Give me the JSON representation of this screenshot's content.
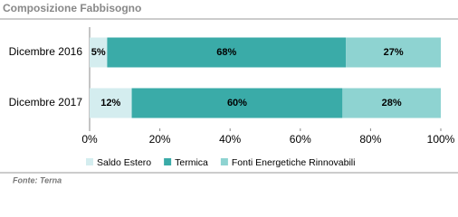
{
  "chart_data": {
    "type": "stacked-bar-horizontal",
    "title": "Composizione Fabbisogno",
    "source": "Fonte: Terna",
    "categories": [
      "Dicembre 2016",
      "Dicembre 2017"
    ],
    "series": [
      {
        "name": "Saldo Estero",
        "color": "#d4edef",
        "values": [
          5,
          12
        ],
        "value_labels": [
          "5%",
          "12%"
        ]
      },
      {
        "name": "Termica",
        "color": "#3aaba8",
        "values": [
          68,
          60
        ],
        "value_labels": [
          "68%",
          "60%"
        ]
      },
      {
        "name": "Fonti Energetiche Rinnovabili",
        "color": "#8ed3d1",
        "values": [
          27,
          28
        ],
        "value_labels": [
          "27%",
          "28%"
        ]
      }
    ],
    "xlim": [
      0,
      100
    ],
    "xticks": [
      {
        "value": 0,
        "label": "0%"
      },
      {
        "value": 20,
        "label": "20%"
      },
      {
        "value": 40,
        "label": "40%"
      },
      {
        "value": 60,
        "label": "60%"
      },
      {
        "value": 80,
        "label": "80%"
      },
      {
        "value": 100,
        "label": "100%"
      }
    ]
  }
}
